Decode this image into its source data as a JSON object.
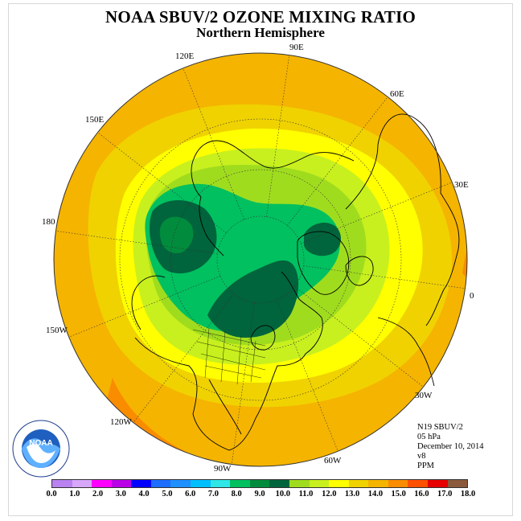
{
  "header": {
    "title": "NOAA SBUV/2 OZONE MIXING RATIO",
    "subtitle": "Northern Hemisphere"
  },
  "map": {
    "projection": "north-polar-stereographic",
    "longitude_labels": [
      "90E",
      "60E",
      "30E",
      "0",
      "30W",
      "60W",
      "90W",
      "120W",
      "150W",
      "180",
      "150E",
      "120E"
    ]
  },
  "info": {
    "satellite": "N19 SBUV/2",
    "pressure": "05 hPa",
    "date": "December 10, 2014",
    "version": "v8",
    "units": "PPM"
  },
  "colorbar": {
    "colors": [
      "#b982f0",
      "#d7a7fa",
      "#ff00ff",
      "#ba00e6",
      "#0000ff",
      "#1d6eff",
      "#1e90ff",
      "#00bfff",
      "#30e6e6",
      "#00c060",
      "#008c3c",
      "#00643c",
      "#a0dc1e",
      "#c8f01e",
      "#ffff00",
      "#f0d200",
      "#f5b400",
      "#fa8c00",
      "#ff5000",
      "#e60000",
      "#8b5a3c"
    ],
    "labels": [
      "0.0",
      "1.0",
      "2.0",
      "3.0",
      "4.0",
      "5.0",
      "6.0",
      "7.0",
      "8.0",
      "9.0",
      "10.0",
      "11.0",
      "12.0",
      "13.0",
      "14.0",
      "15.0",
      "16.0",
      "17.0",
      "18.0"
    ]
  },
  "logo": {
    "text": "NOAA",
    "ring_text": "NATIONAL OCEANIC AND ATMOSPHERIC ADMINISTRATION",
    "ring_text_bottom": "U.S. DEPARTMENT OF COMMERCE"
  }
}
